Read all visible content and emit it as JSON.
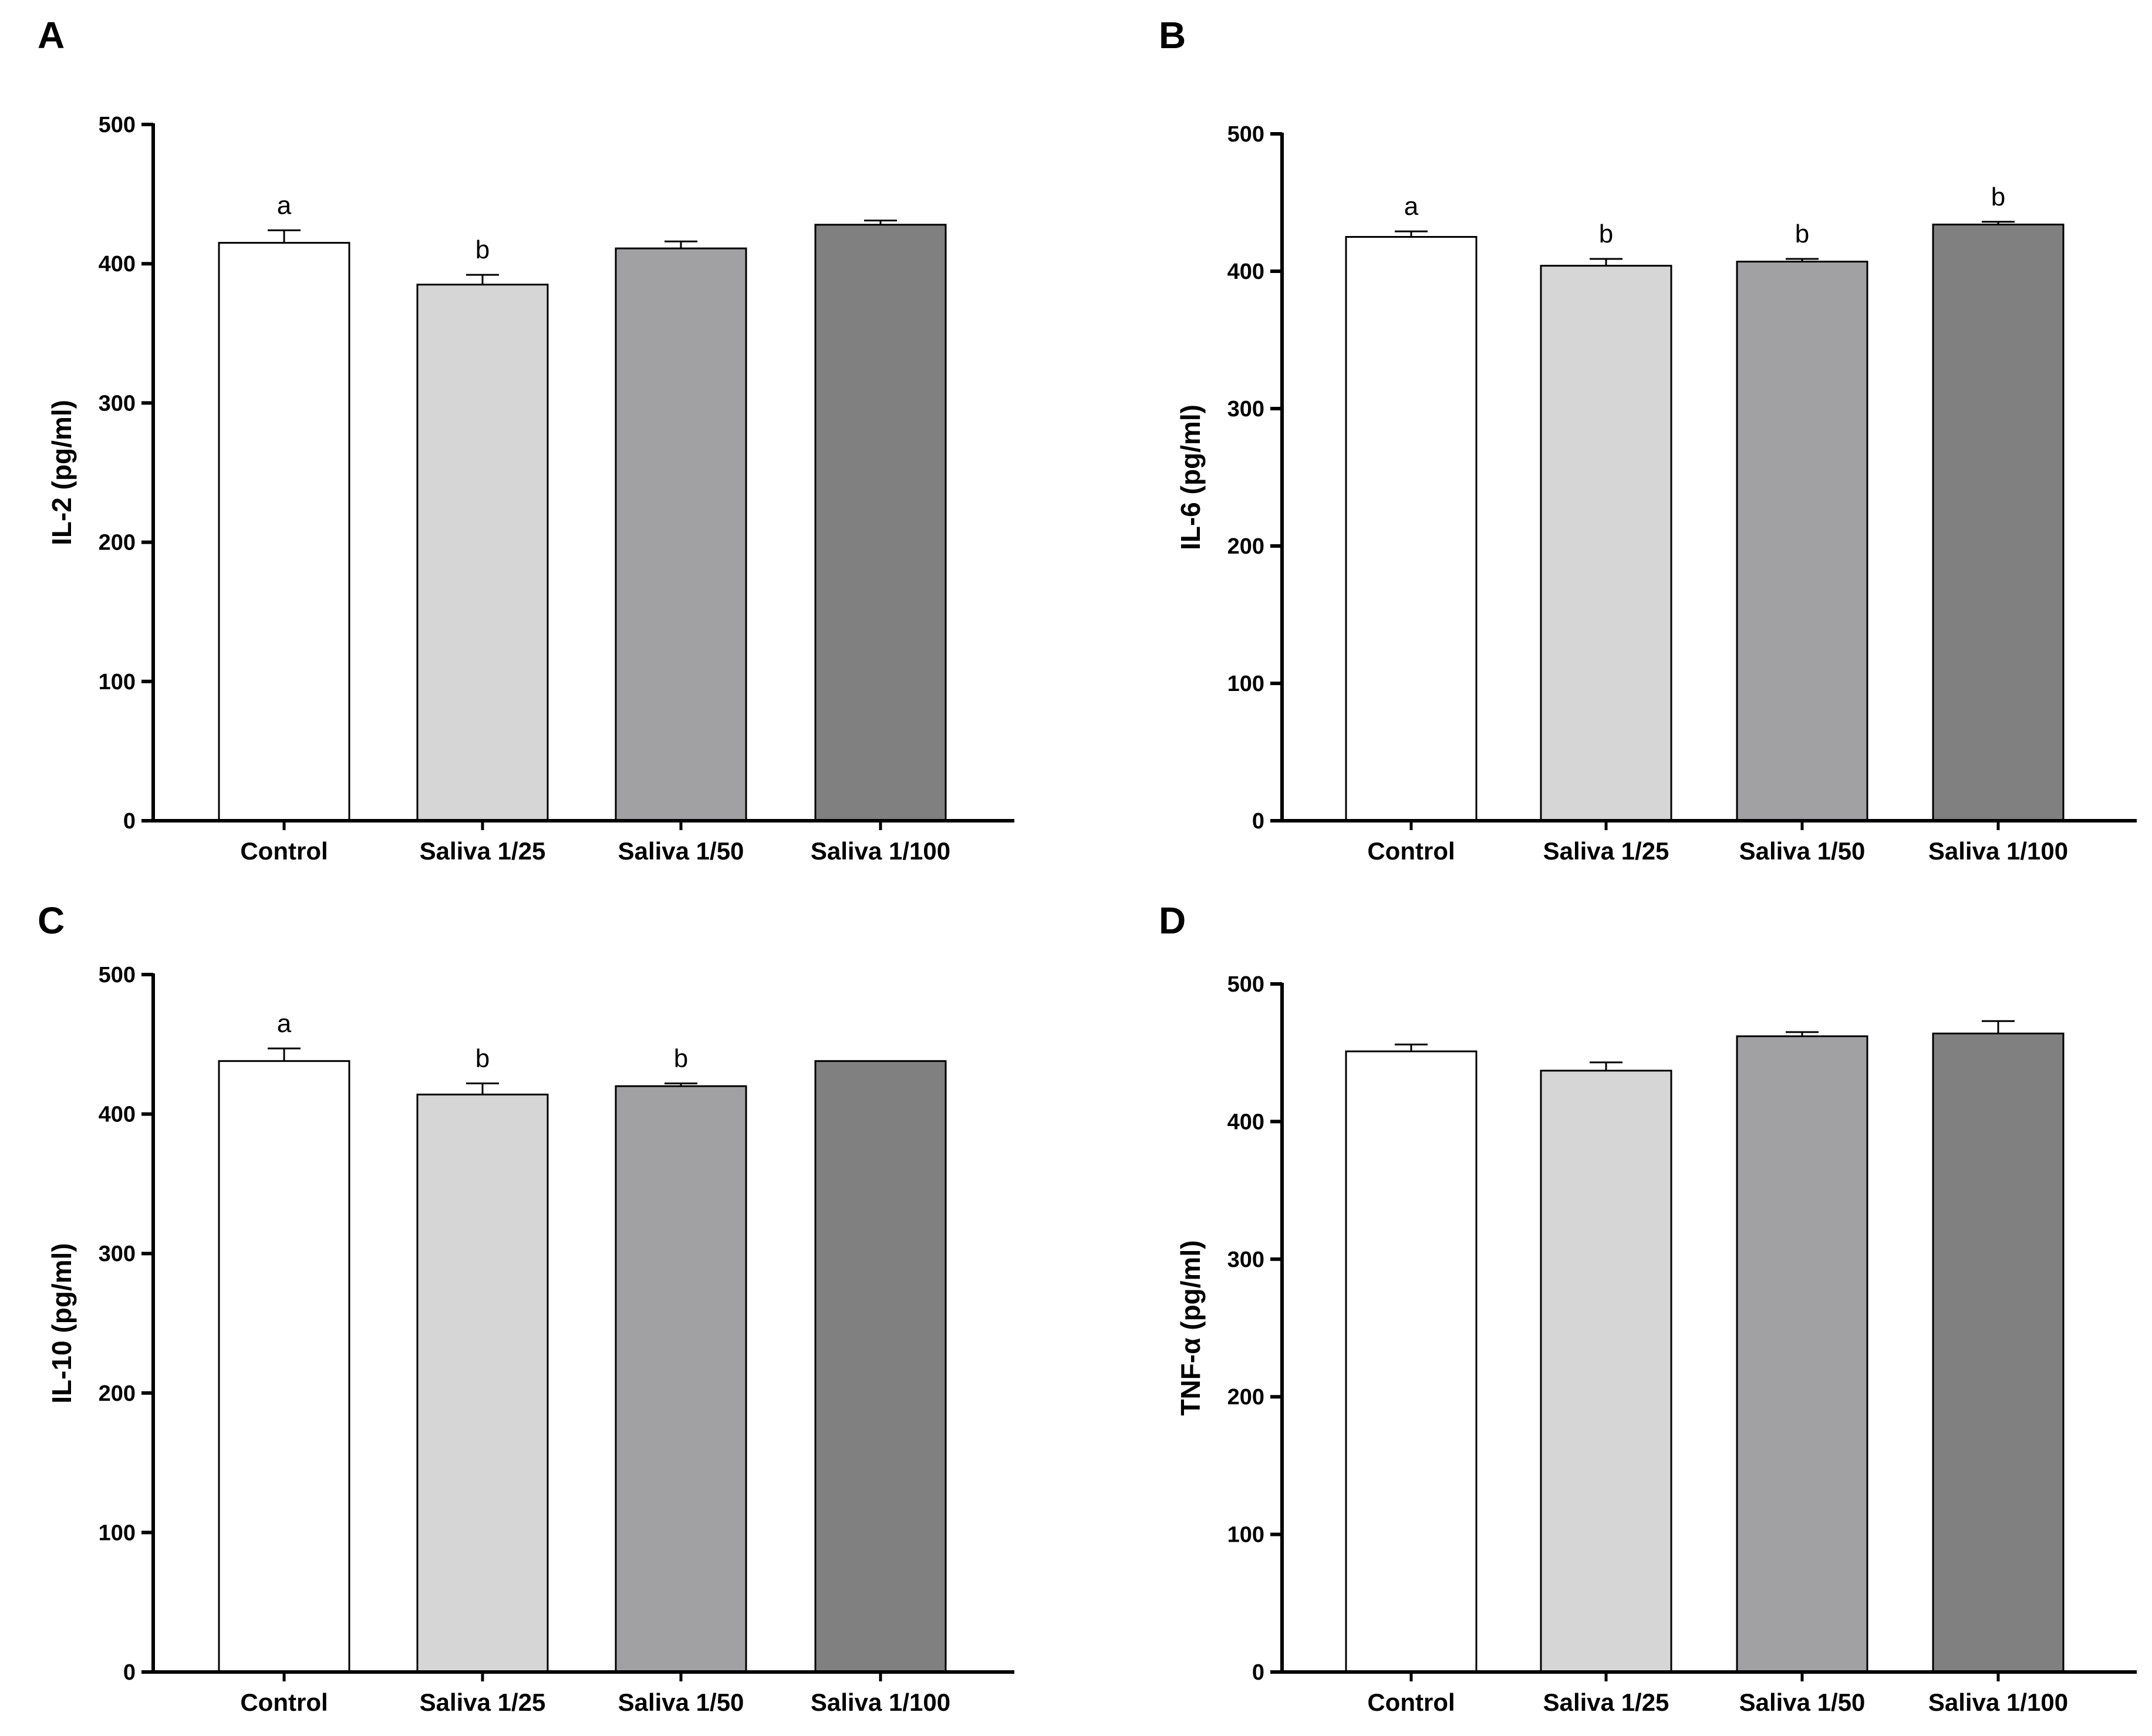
{
  "colors": {
    "fills": [
      "#ffffff",
      "#d6d6d6",
      "#a1a1a4",
      "#808080"
    ],
    "stroke": "#000000"
  },
  "chart_data": [
    {
      "panel": "A",
      "type": "bar",
      "categories": [
        "Control",
        "Saliva 1/25",
        "Saliva 1/50",
        "Saliva 1/100"
      ],
      "values": [
        415,
        385,
        411,
        428
      ],
      "errors": [
        9,
        7,
        5,
        3
      ],
      "significance": [
        "a",
        "b",
        "",
        ""
      ],
      "ylabel": "IL-2 (pg/ml)",
      "ylim": [
        0,
        500
      ],
      "yticks": [
        0,
        100,
        200,
        300,
        400,
        500
      ]
    },
    {
      "panel": "B",
      "type": "bar",
      "categories": [
        "Control",
        "Saliva 1/25",
        "Saliva 1/50",
        "Saliva 1/100"
      ],
      "values": [
        425,
        404,
        407,
        434
      ],
      "errors": [
        4,
        5,
        2,
        2
      ],
      "significance": [
        "a",
        "b",
        "b",
        "b"
      ],
      "ylabel": "IL-6 (pg/ml)",
      "ylim": [
        0,
        500
      ],
      "yticks": [
        0,
        100,
        200,
        300,
        400,
        500
      ]
    },
    {
      "panel": "C",
      "type": "bar",
      "categories": [
        "Control",
        "Saliva 1/25",
        "Saliva 1/50",
        "Saliva 1/100"
      ],
      "values": [
        438,
        414,
        420,
        438
      ],
      "errors": [
        9,
        8,
        2,
        0
      ],
      "significance": [
        "a",
        "b",
        "b",
        ""
      ],
      "ylabel": "IL-10 (pg/ml)",
      "ylim": [
        0,
        500
      ],
      "yticks": [
        0,
        100,
        200,
        300,
        400,
        500
      ]
    },
    {
      "panel": "D",
      "type": "bar",
      "categories": [
        "Control",
        "Saliva 1/25",
        "Saliva 1/50",
        "Saliva 1/100"
      ],
      "values": [
        451,
        437,
        462,
        464
      ],
      "errors": [
        5,
        6,
        3,
        9
      ],
      "significance": [
        "",
        "",
        "",
        ""
      ],
      "ylabel": "TNF-α (pg/ml)",
      "ylim": [
        0,
        500
      ],
      "yticks": [
        0,
        100,
        200,
        300,
        400,
        500
      ]
    }
  ]
}
